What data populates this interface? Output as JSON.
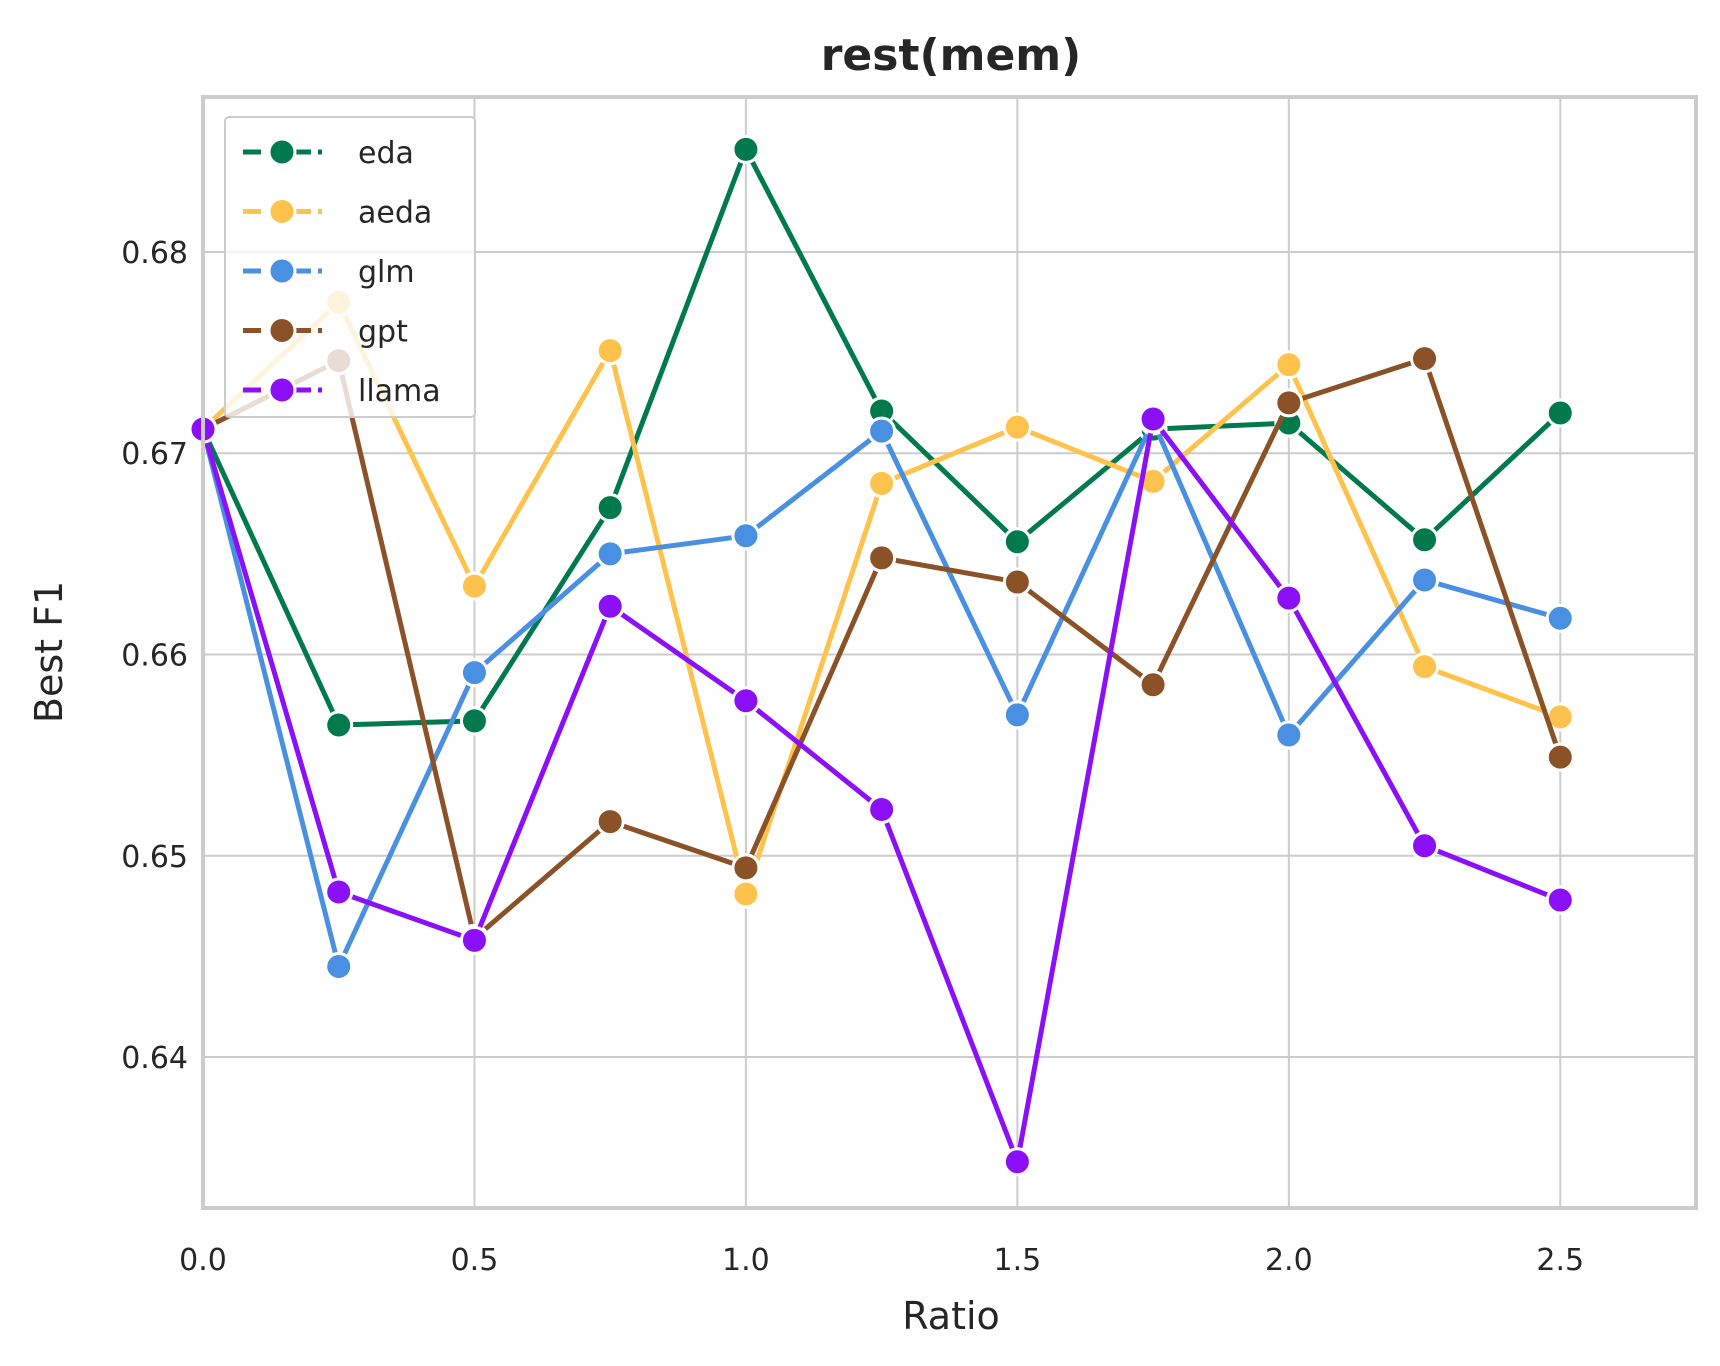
{
  "chart_data": {
    "type": "line",
    "title": "rest(mem)",
    "xlabel": "Ratio",
    "ylabel": "Best F1",
    "xlim": [
      0.0,
      2.75
    ],
    "ylim": [
      0.6325,
      0.6877
    ],
    "xticks": [
      0.0,
      0.5,
      1.0,
      1.5,
      2.0,
      2.5
    ],
    "xtick_labels": [
      "0.0",
      "0.5",
      "1.0",
      "1.5",
      "2.0",
      "2.5"
    ],
    "yticks": [
      0.64,
      0.65,
      0.66,
      0.67,
      0.68
    ],
    "ytick_labels": [
      "0.64",
      "0.65",
      "0.66",
      "0.67",
      "0.68"
    ],
    "grid": true,
    "legend_position": "top-left",
    "x": [
      0.0,
      0.25,
      0.5,
      0.75,
      1.0,
      1.25,
      1.5,
      1.75,
      2.0,
      2.25,
      2.5
    ],
    "series": [
      {
        "name": "eda",
        "color": "#007a4d",
        "values": [
          0.6712,
          0.6565,
          0.6567,
          0.6673,
          0.6851,
          0.6721,
          0.6656,
          0.6712,
          0.6715,
          0.6657,
          0.672
        ]
      },
      {
        "name": "aeda",
        "color": "#ffc34d",
        "values": [
          0.6712,
          0.6775,
          0.6634,
          0.6751,
          0.6481,
          0.6685,
          0.6713,
          0.6686,
          0.6744,
          0.6594,
          0.6569
        ]
      },
      {
        "name": "glm",
        "color": "#4a90e2",
        "values": [
          0.6712,
          0.6445,
          0.6591,
          0.665,
          0.6659,
          0.6711,
          0.657,
          0.6716,
          0.656,
          0.6637,
          0.6618
        ]
      },
      {
        "name": "gpt",
        "color": "#8b5228",
        "values": [
          0.6712,
          0.6746,
          0.6459,
          0.6517,
          0.6494,
          0.6648,
          0.6636,
          0.6585,
          0.6725,
          0.6747,
          0.6549
        ]
      },
      {
        "name": "llama",
        "color": "#8b10f7",
        "values": [
          0.6712,
          0.6482,
          0.6458,
          0.6624,
          0.6577,
          0.6523,
          0.6348,
          0.6717,
          0.6628,
          0.6505,
          0.6478
        ]
      }
    ]
  }
}
